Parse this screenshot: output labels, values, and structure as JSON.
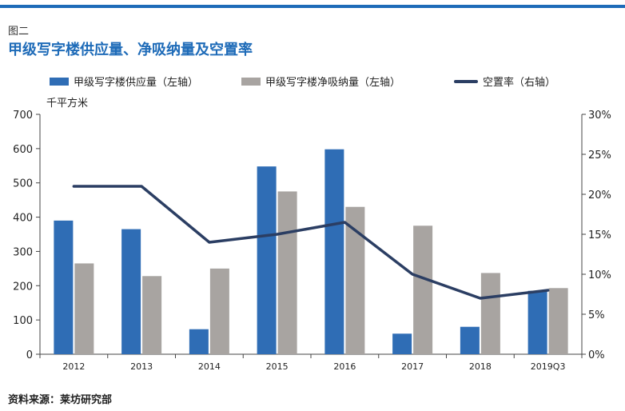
{
  "header": {
    "figure_label": "图二",
    "title": "甲级写字楼供应量、净吸纳量及空置率"
  },
  "source": "资料来源：莱坊研究部",
  "colors": {
    "accent": "#1e6bb8",
    "supply": "#2f6db5",
    "absorption": "#a8a4a1",
    "vacancy": "#2b3e63"
  },
  "chart_data": {
    "type": "bar",
    "title": "甲级写字楼供应量、净吸纳量及空置率",
    "y_unit_label": "千平方米",
    "categories": [
      "2012",
      "2013",
      "2014",
      "2015",
      "2016",
      "2017",
      "2018",
      "2019Q3"
    ],
    "series": [
      {
        "name": "甲级写字楼供应量（左轴）",
        "type": "bar",
        "axis": "left",
        "values": [
          390,
          365,
          73,
          548,
          598,
          60,
          80,
          185
        ]
      },
      {
        "name": "甲级写字楼净吸纳量（左轴）",
        "type": "bar",
        "axis": "left",
        "values": [
          265,
          228,
          250,
          475,
          430,
          375,
          237,
          193
        ]
      },
      {
        "name": "空置率（右轴）",
        "type": "line",
        "axis": "right",
        "values": [
          21,
          21,
          14,
          15,
          16.5,
          10,
          7,
          8
        ]
      }
    ],
    "y_left": {
      "min": 0,
      "max": 700,
      "ticks": [
        "0",
        "100",
        "200",
        "300",
        "400",
        "500",
        "600",
        "700"
      ]
    },
    "y_right": {
      "min": 0,
      "max": 30,
      "ticks": [
        "0%",
        "5%",
        "10%",
        "15%",
        "20%",
        "25%",
        "30%"
      ]
    },
    "grid": false,
    "legend_position": "top"
  }
}
